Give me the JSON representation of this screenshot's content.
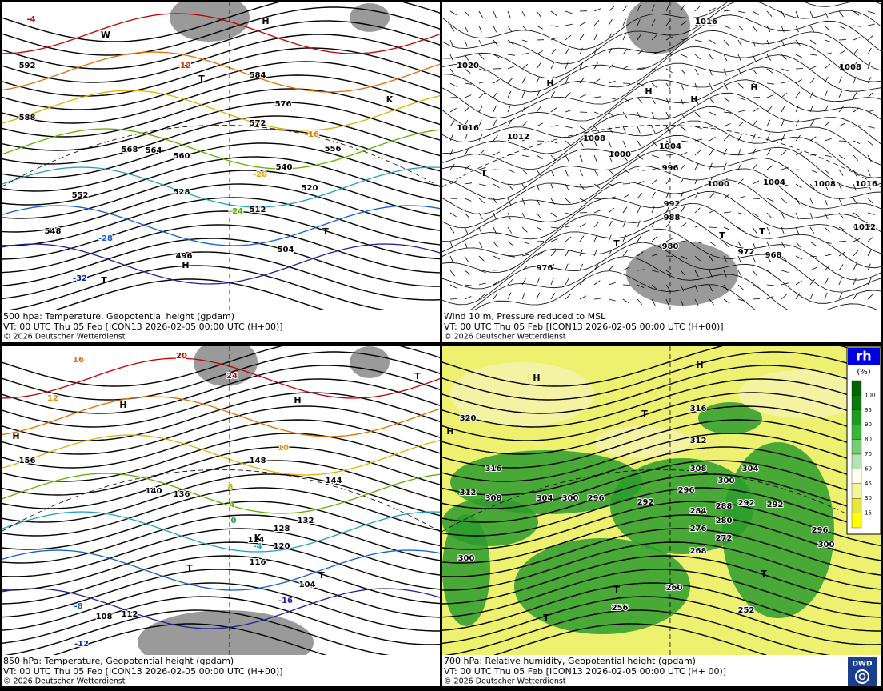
{
  "panels": [
    {
      "caption": "500 hpa: Temperature, Geopotential height (gpdam)",
      "valid_time": "VT: 00 UTC Thu  05 Feb [ICON13 2026-02-05 00:00 UTC  (H+00)]",
      "copyright": "© 2026 Deutscher Wetterdienst",
      "contour_labels": [
        "592",
        "588",
        "584",
        "576",
        "572",
        "568",
        "564",
        "560",
        "556",
        "552",
        "548",
        "540",
        "528",
        "520",
        "512",
        "504",
        "496"
      ],
      "temperature_labels": [
        "-4",
        "-12",
        "-16",
        "-20",
        "-24",
        "-28",
        "-32"
      ],
      "markers": [
        "H",
        "T",
        "K",
        "T",
        "T",
        "W",
        "H"
      ]
    },
    {
      "caption": "Wind 10 m, Pressure reduced to MSL",
      "valid_time": "VT: 00 UTC Thu  05 Feb [ICON13 2026-02-05 00:00 UTC  (H+00)]",
      "copyright": "© 2026 Deutscher Wetterdienst",
      "contour_labels": [
        "1020",
        "1016",
        "1012",
        "1008",
        "1004",
        "1000",
        "996",
        "992",
        "988",
        "980",
        "976",
        "972",
        "968",
        "1016",
        "1008",
        "1004",
        "1008",
        "1016",
        "1012",
        "1000"
      ],
      "temperature_labels": [],
      "markers": [
        "H",
        "H",
        "H",
        "H",
        "T",
        "T",
        "T",
        "T"
      ]
    },
    {
      "caption": "850 hPa:  Temperature, Geopotential height (gpdam)",
      "valid_time": "VT: 00 UTC Thu  05 Feb [ICON13 2026-02-05 00:00 UTC  (H+00)]",
      "copyright": "© 2026 Deutscher Wetterdienst",
      "contour_labels": [
        "156",
        "148",
        "144",
        "140",
        "136",
        "132",
        "128",
        "124",
        "120",
        "116",
        "112",
        "108",
        "104"
      ],
      "temperature_labels": [
        "20",
        "24",
        "16",
        "12",
        "10",
        "8",
        "4",
        "0",
        "-4",
        "-8",
        "-12",
        "-16"
      ],
      "markers": [
        "H",
        "H",
        "H",
        "T",
        "T",
        "T",
        "K"
      ]
    },
    {
      "caption": "700 hPa:  Relative humidity, Geopotential height (gpdam)",
      "valid_time": "VT: 00 UTC Thu  05 Feb [ICON13 2026-02-05 00:00 UTC  (H+ 00)]",
      "copyright": "© 2026 Deutscher Wetterdienst",
      "contour_labels": [
        "320",
        "316",
        "312",
        "308",
        "304",
        "300",
        "296",
        "292",
        "288",
        "284",
        "280",
        "276",
        "272",
        "268",
        "260",
        "256",
        "252",
        "316",
        "312",
        "308",
        "304",
        "300",
        "296",
        "292",
        "292",
        "296",
        "300",
        "300"
      ],
      "temperature_labels": [],
      "markers": [
        "H",
        "H",
        "H",
        "T",
        "T",
        "T",
        "T"
      ]
    }
  ],
  "legend": {
    "title": "rh",
    "unit": "(%)",
    "ticks": [
      100,
      95,
      90,
      80,
      70,
      60,
      45,
      30,
      15
    ],
    "colors": [
      "#006400",
      "#0a7a0a",
      "#1e9a1e",
      "#3cb43c",
      "#78cc78",
      "#b4e4b4",
      "#fffff0",
      "#f4f4a0",
      "#e6e640",
      "#ffff00"
    ]
  },
  "logo": "DWD"
}
